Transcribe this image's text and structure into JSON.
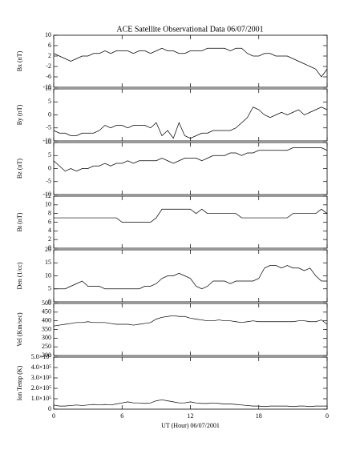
{
  "chart_data": [
    {
      "type": "line",
      "title": "ACE Satellite Observational Data   06/07/2001",
      "ylabel": "Bx (nT)",
      "color": "#000000",
      "xlim": [
        0,
        24
      ],
      "ylim": [
        -10,
        10
      ],
      "yticks": [
        -10,
        -6,
        -2,
        2,
        6,
        10
      ],
      "x": [
        0,
        0.5,
        1,
        1.5,
        2,
        2.5,
        3,
        3.5,
        4,
        4.5,
        5,
        5.5,
        6,
        6.5,
        7,
        7.5,
        8,
        8.5,
        9,
        9.5,
        10,
        10.5,
        11,
        11.5,
        12,
        12.5,
        13,
        13.5,
        14,
        14.5,
        15,
        15.5,
        16,
        16.5,
        17,
        17.5,
        18,
        18.5,
        19,
        19.5,
        20,
        20.5,
        21,
        21.5,
        22,
        22.5,
        23,
        23.5,
        24
      ],
      "values": [
        3,
        2,
        1,
        0,
        1,
        2,
        2,
        3,
        3,
        4,
        3,
        4,
        4,
        4,
        3,
        4,
        4,
        3,
        4,
        5,
        4,
        4,
        3,
        3,
        4,
        4,
        4,
        5,
        5,
        5,
        5,
        4,
        5,
        5,
        3,
        2,
        2,
        3,
        3,
        2,
        2,
        2,
        1,
        0,
        -1,
        -2,
        -3,
        -6,
        -3
      ]
    },
    {
      "type": "line",
      "ylabel": "By (nT)",
      "color": "#000000",
      "xlim": [
        0,
        24
      ],
      "ylim": [
        -10,
        10
      ],
      "yticks": [
        -10,
        -5,
        0,
        5,
        10
      ],
      "x": [
        0,
        0.5,
        1,
        1.5,
        2,
        2.5,
        3,
        3.5,
        4,
        4.5,
        5,
        5.5,
        6,
        6.5,
        7,
        7.5,
        8,
        8.5,
        9,
        9.5,
        10,
        10.5,
        11,
        11.5,
        12,
        12.5,
        13,
        13.5,
        14,
        14.5,
        15,
        15.5,
        16,
        16.5,
        17,
        17.5,
        18,
        18.5,
        19,
        19.5,
        20,
        20.5,
        21,
        21.5,
        22,
        22.5,
        23,
        23.5,
        24
      ],
      "values": [
        -6,
        -7,
        -7,
        -8,
        -8,
        -7,
        -7,
        -7,
        -6,
        -4,
        -5,
        -4,
        -4,
        -5,
        -4,
        -4,
        -4,
        -5,
        -3,
        -8,
        -6,
        -9,
        -3,
        -8,
        -9,
        -8,
        -7,
        -7,
        -6,
        -6,
        -6,
        -6,
        -5,
        -3,
        -1,
        3,
        2,
        0,
        -1,
        0,
        1,
        0,
        1,
        2,
        0,
        1,
        2,
        3,
        2
      ]
    },
    {
      "type": "line",
      "ylabel": "Bz (nT)",
      "color": "#000000",
      "xlim": [
        0,
        24
      ],
      "ylim": [
        -10,
        10
      ],
      "yticks": [
        -10,
        -5,
        0,
        5,
        10
      ],
      "x": [
        0,
        0.5,
        1,
        1.5,
        2,
        2.5,
        3,
        3.5,
        4,
        4.5,
        5,
        5.5,
        6,
        6.5,
        7,
        7.5,
        8,
        8.5,
        9,
        9.5,
        10,
        10.5,
        11,
        11.5,
        12,
        12.5,
        13,
        13.5,
        14,
        14.5,
        15,
        15.5,
        16,
        16.5,
        17,
        17.5,
        18,
        18.5,
        19,
        19.5,
        20,
        20.5,
        21,
        21.5,
        22,
        22.5,
        23,
        23.5,
        24
      ],
      "values": [
        3,
        1,
        -1,
        0,
        -1,
        0,
        0,
        1,
        1,
        2,
        1,
        2,
        2,
        3,
        2,
        3,
        3,
        3,
        3,
        4,
        3,
        2,
        3,
        4,
        4,
        4,
        3,
        4,
        5,
        5,
        5,
        6,
        6,
        5,
        6,
        6,
        7,
        7,
        7,
        7,
        7,
        7,
        8,
        8,
        8,
        8,
        8,
        8,
        7
      ]
    },
    {
      "type": "line",
      "ylabel": "Bt (nT)",
      "color": "#000000",
      "xlim": [
        0,
        24
      ],
      "ylim": [
        0,
        12
      ],
      "yticks": [
        0,
        2,
        4,
        6,
        8,
        10,
        12
      ],
      "x": [
        0,
        0.5,
        1,
        1.5,
        2,
        2.5,
        3,
        3.5,
        4,
        4.5,
        5,
        5.5,
        6,
        6.5,
        7,
        7.5,
        8,
        8.5,
        9,
        9.5,
        10,
        10.5,
        11,
        11.5,
        12,
        12.5,
        13,
        13.5,
        14,
        14.5,
        15,
        15.5,
        16,
        16.5,
        17,
        17.5,
        18,
        18.5,
        19,
        19.5,
        20,
        20.5,
        21,
        21.5,
        22,
        22.5,
        23,
        23.5,
        24
      ],
      "values": [
        7,
        7,
        7,
        7,
        7,
        7,
        7,
        7,
        7,
        7,
        7,
        7,
        6,
        6,
        6,
        6,
        6,
        6,
        7,
        9,
        9,
        9,
        9,
        9,
        9,
        8,
        9,
        8,
        8,
        8,
        8,
        8,
        8,
        7,
        7,
        7,
        7,
        7,
        7,
        7,
        7,
        7,
        8,
        8,
        8,
        8,
        8,
        9,
        8
      ]
    },
    {
      "type": "line",
      "ylabel": "Den (1/cc)",
      "color": "#000000",
      "xlim": [
        0,
        24
      ],
      "ylim": [
        0,
        20
      ],
      "yticks": [
        0,
        5,
        10,
        15,
        20
      ],
      "x": [
        0,
        0.5,
        1,
        1.5,
        2,
        2.5,
        3,
        3.5,
        4,
        4.5,
        5,
        5.5,
        6,
        6.5,
        7,
        7.5,
        8,
        8.5,
        9,
        9.5,
        10,
        10.5,
        11,
        11.5,
        12,
        12.5,
        13,
        13.5,
        14,
        14.5,
        15,
        15.5,
        16,
        16.5,
        17,
        17.5,
        18,
        18.5,
        19,
        19.5,
        20,
        20.5,
        21,
        21.5,
        22,
        22.5,
        23,
        23.5,
        24
      ],
      "values": [
        5,
        5,
        5,
        6,
        7,
        8,
        6,
        6,
        6,
        5,
        5,
        5,
        5,
        5,
        5,
        5,
        6,
        6,
        7,
        9,
        10,
        10,
        11,
        10,
        9,
        6,
        5,
        6,
        8,
        8,
        8,
        7,
        8,
        8,
        8,
        8,
        9,
        13,
        14,
        14,
        13,
        14,
        13,
        13,
        12,
        13,
        10,
        8,
        8
      ]
    },
    {
      "type": "line",
      "ylabel": "Vel (Km/sec)",
      "color": "#000000",
      "xlim": [
        0,
        24
      ],
      "ylim": [
        200,
        500
      ],
      "yticks": [
        200,
        250,
        300,
        350,
        400,
        450,
        500
      ],
      "x": [
        0,
        0.5,
        1,
        1.5,
        2,
        2.5,
        3,
        3.5,
        4,
        4.5,
        5,
        5.5,
        6,
        6.5,
        7,
        7.5,
        8,
        8.5,
        9,
        9.5,
        10,
        10.5,
        11,
        11.5,
        12,
        12.5,
        13,
        13.5,
        14,
        14.5,
        15,
        15.5,
        16,
        16.5,
        17,
        17.5,
        18,
        18.5,
        19,
        19.5,
        20,
        20.5,
        21,
        21.5,
        22,
        22.5,
        23,
        23.5,
        24
      ],
      "values": [
        370,
        375,
        380,
        385,
        390,
        390,
        395,
        390,
        390,
        390,
        385,
        380,
        380,
        380,
        375,
        380,
        385,
        390,
        410,
        420,
        425,
        430,
        425,
        425,
        415,
        410,
        405,
        400,
        400,
        405,
        400,
        400,
        395,
        390,
        395,
        400,
        395,
        395,
        395,
        395,
        395,
        395,
        395,
        400,
        400,
        395,
        395,
        405,
        380
      ]
    },
    {
      "type": "line",
      "ylabel": "Ion Temp (K)",
      "xlabel": "UT (Hour)  06/07/2001",
      "color": "#000000",
      "xlim": [
        0,
        24
      ],
      "xticks": [
        0,
        6,
        12,
        18,
        {
          "value": 24,
          "label": "0"
        }
      ],
      "ylim": [
        0,
        500000
      ],
      "yticks": [
        0,
        {
          "value": 100000,
          "label": "1.0×10⁵"
        },
        {
          "value": 200000,
          "label": "2.0×10⁵"
        },
        {
          "value": 300000,
          "label": "3.0×10⁵"
        },
        {
          "value": 400000,
          "label": "4.0×10⁵"
        },
        {
          "value": 500000,
          "label": "5.0×10⁵"
        }
      ],
      "x": [
        0,
        0.5,
        1,
        1.5,
        2,
        2.5,
        3,
        3.5,
        4,
        4.5,
        5,
        5.5,
        6,
        6.5,
        7,
        7.5,
        8,
        8.5,
        9,
        9.5,
        10,
        10.5,
        11,
        11.5,
        12,
        12.5,
        13,
        13.5,
        14,
        14.5,
        15,
        15.5,
        16,
        16.5,
        17,
        17.5,
        18,
        18.5,
        19,
        19.5,
        20,
        20.5,
        21,
        21.5,
        22,
        22.5,
        23,
        23.5,
        24
      ],
      "values": [
        40000,
        30000,
        30000,
        35000,
        40000,
        35000,
        40000,
        45000,
        40000,
        45000,
        40000,
        50000,
        60000,
        70000,
        60000,
        60000,
        55000,
        60000,
        80000,
        90000,
        80000,
        70000,
        60000,
        60000,
        70000,
        60000,
        55000,
        55000,
        60000,
        55000,
        50000,
        50000,
        45000,
        40000,
        35000,
        30000,
        30000,
        25000,
        30000,
        30000,
        30000,
        30000,
        25000,
        30000,
        30000,
        25000,
        30000,
        30000,
        30000
      ]
    }
  ]
}
